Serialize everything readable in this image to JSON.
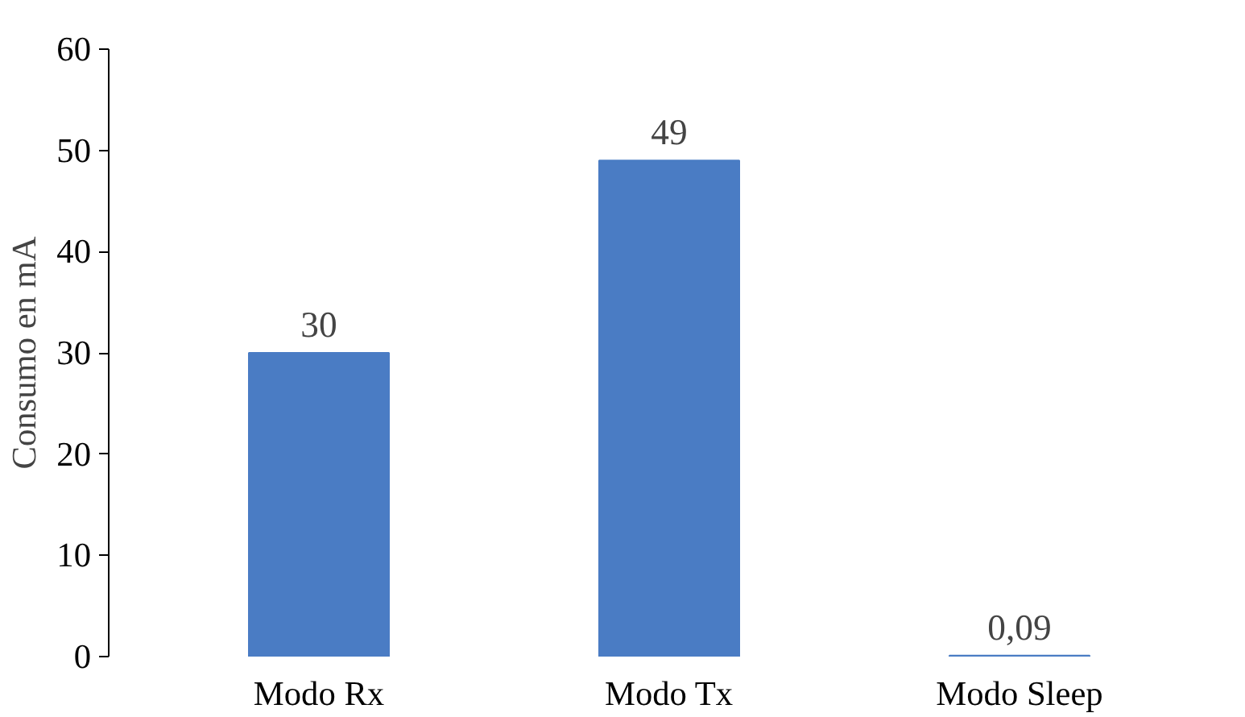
{
  "chart_data": {
    "type": "bar",
    "ylabel": "Consumo en mA",
    "categories": [
      "Modo Rx",
      "Modo Tx",
      "Modo Sleep"
    ],
    "values": [
      30,
      49,
      0.09
    ],
    "value_labels": [
      "30",
      "49",
      "0,09"
    ],
    "color": "#4a7cc4",
    "ylim": [
      0,
      60
    ],
    "yticks": [
      0,
      10,
      20,
      30,
      40,
      50,
      60
    ],
    "grid": false
  }
}
